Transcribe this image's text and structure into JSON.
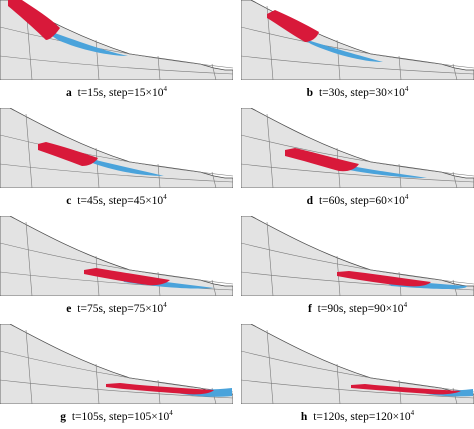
{
  "figure": {
    "colors": {
      "terrain": "#e3e3e3",
      "outline": "#4a4a4a",
      "debris_red": "#d8193a",
      "debris_blue": "#4aa3db"
    },
    "panels": [
      {
        "label": "a",
        "time": "t=15s,",
        "step": "step=15×10",
        "exp": "4"
      },
      {
        "label": "b",
        "time": "t=30s,",
        "step": "step=30×10",
        "exp": "4"
      },
      {
        "label": "c",
        "time": "t=45s,",
        "step": "step=45×10",
        "exp": "4"
      },
      {
        "label": "d",
        "time": "t=60s,",
        "step": "step=60×10",
        "exp": "4"
      },
      {
        "label": "e",
        "time": "t=75s,",
        "step": "step=75×10",
        "exp": "4"
      },
      {
        "label": "f",
        "time": "t=90s,",
        "step": "step=90×10",
        "exp": "4"
      },
      {
        "label": "g",
        "time": "t=105s,",
        "step": "step=105×10",
        "exp": "4"
      },
      {
        "label": "h",
        "time": "t=120s,",
        "step": "step=120×10",
        "exp": "4"
      }
    ]
  }
}
